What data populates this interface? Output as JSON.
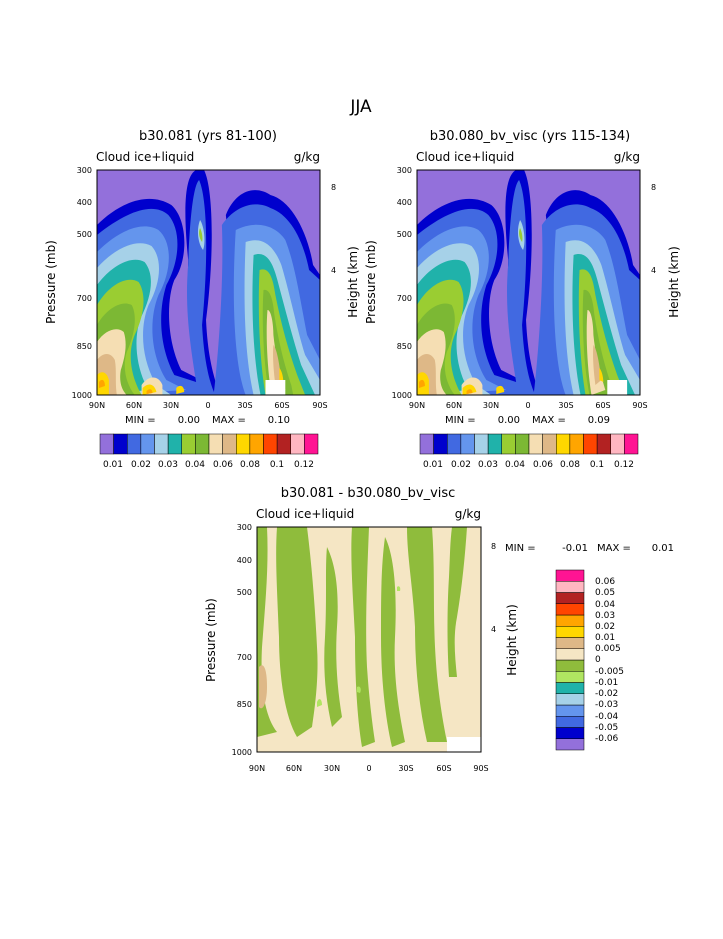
{
  "page_title": "JJA",
  "colors": {
    "main_scale": [
      "#9370db",
      "#0000cd",
      "#4169e1",
      "#6495ed",
      "#a6d1e8",
      "#20b2aa",
      "#9acd32",
      "#7cb834",
      "#f5deb3",
      "#deb887",
      "#ffd700",
      "#ffa500",
      "#ff4500",
      "#b22222",
      "#ffb6c1",
      "#ff1493"
    ],
    "diff_scale": [
      "#9370db",
      "#0000cd",
      "#4169e1",
      "#6495ed",
      "#a6d1e8",
      "#20b2aa",
      "#b0e561",
      "#8fbc3c",
      "#f5e6c4",
      "#deb887",
      "#ffd700",
      "#ffa500",
      "#ff4500",
      "#b22222",
      "#ffb6c1",
      "#ff1493"
    ]
  },
  "chart_data": [
    {
      "type": "heatmap",
      "title": "b30.081 (yrs 81-100)",
      "left_label": "Cloud ice+liquid",
      "right_label": "g/kg",
      "ylabel": "Pressure (mb)",
      "y2label": "Height (km)",
      "x_ticks": [
        "90N",
        "60N",
        "30N",
        "0",
        "30S",
        "60S",
        "90S"
      ],
      "y_ticks": [
        "300",
        "400",
        "500",
        "700",
        "850",
        "1000"
      ],
      "y2_ticks": [
        "8",
        "4"
      ],
      "stats": {
        "min_label": "MIN =",
        "min": "0.00",
        "max_label": "MAX =",
        "max": "0.10"
      },
      "colorbar_labels": [
        "0.01",
        "0.02",
        "0.03",
        "0.04",
        "0.06",
        "0.08",
        "0.1",
        "0.12"
      ]
    },
    {
      "type": "heatmap",
      "title": "b30.080_bv_visc (yrs 115-134)",
      "left_label": "Cloud ice+liquid",
      "right_label": "g/kg",
      "ylabel": "Pressure (mb)",
      "y2label": "Height (km)",
      "x_ticks": [
        "90N",
        "60N",
        "30N",
        "0",
        "30S",
        "60S",
        "90S"
      ],
      "y_ticks": [
        "300",
        "400",
        "500",
        "700",
        "850",
        "1000"
      ],
      "y2_ticks": [
        "8",
        "4"
      ],
      "stats": {
        "min_label": "MIN =",
        "min": "0.00",
        "max_label": "MAX =",
        "max": "0.09"
      },
      "colorbar_labels": [
        "0.01",
        "0.02",
        "0.03",
        "0.04",
        "0.06",
        "0.08",
        "0.1",
        "0.12"
      ]
    },
    {
      "type": "heatmap",
      "title": "b30.081 - b30.080_bv_visc",
      "left_label": "Cloud ice+liquid",
      "right_label": "g/kg",
      "ylabel": "Pressure (mb)",
      "y2label": "Height (km)",
      "x_ticks": [
        "90N",
        "60N",
        "30N",
        "0",
        "30S",
        "60S",
        "90S"
      ],
      "y_ticks": [
        "300",
        "400",
        "500",
        "700",
        "850",
        "1000"
      ],
      "y2_ticks": [
        "8",
        "4"
      ],
      "stats": {
        "min_label": "MIN =",
        "min": "-0.01",
        "max_label": "MAX =",
        "max": "0.01"
      },
      "colorbar_labels": [
        "0.06",
        "0.05",
        "0.04",
        "0.03",
        "0.02",
        "0.01",
        "0.005",
        "0",
        "-0.005",
        "-0.01",
        "-0.02",
        "-0.03",
        "-0.04",
        "-0.05",
        "-0.06"
      ]
    }
  ]
}
